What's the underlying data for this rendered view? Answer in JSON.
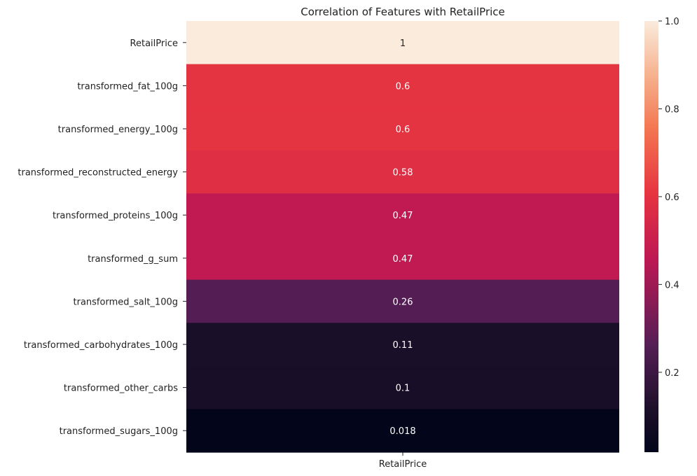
{
  "chart_data": {
    "type": "heatmap",
    "title": "Correlation of Features with RetailPrice",
    "columns": [
      "RetailPrice"
    ],
    "rows": [
      "RetailPrice",
      "transformed_fat_100g",
      "transformed_energy_100g",
      "transformed_reconstructed_energy",
      "transformed_proteins_100g",
      "transformed_g_sum",
      "transformed_salt_100g",
      "transformed_carbohydrates_100g",
      "transformed_other_carbs",
      "transformed_sugars_100g"
    ],
    "values": [
      1,
      0.6,
      0.6,
      0.58,
      0.47,
      0.47,
      0.26,
      0.11,
      0.1,
      0.018
    ],
    "value_labels": [
      "1",
      "0.6",
      "0.6",
      "0.58",
      "0.47",
      "0.47",
      "0.26",
      "0.11",
      "0.1",
      "0.018"
    ],
    "colorbar": {
      "vmin": 0.018,
      "vmax": 1,
      "ticks": [
        0.2,
        0.4,
        0.6,
        0.8,
        1.0
      ],
      "tick_labels": [
        "0.2",
        "0.4",
        "0.6",
        "0.8",
        "1.0"
      ],
      "colormap": "rocket"
    },
    "grid": false
  }
}
